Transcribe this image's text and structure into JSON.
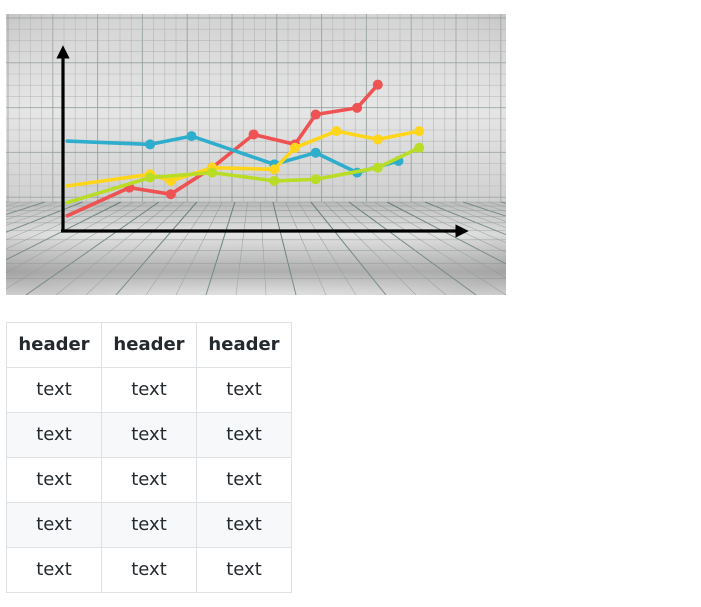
{
  "image": {
    "alt": "",
    "series": [
      {
        "name": "",
        "color": "#ee5252",
        "points": [
          [
            -1,
            -0.5
          ],
          [
            2,
            1.2
          ],
          [
            4,
            0.8
          ],
          [
            6,
            2.4
          ],
          [
            8,
            4.4
          ],
          [
            10,
            3.8
          ],
          [
            11,
            5.6
          ],
          [
            13,
            6
          ],
          [
            14,
            7.4
          ]
        ]
      },
      {
        "name": "",
        "color": "#2eaecc",
        "points": [
          [
            -1,
            4
          ],
          [
            3,
            3.8
          ],
          [
            5,
            4.3
          ],
          [
            9,
            2.6
          ],
          [
            11,
            3.3
          ],
          [
            13,
            2.1
          ],
          [
            15,
            2.8
          ]
        ]
      },
      {
        "name": "",
        "color": "#ffd51c",
        "points": [
          [
            -1,
            1.3
          ],
          [
            3,
            2
          ],
          [
            4,
            1.6
          ],
          [
            6,
            2.4
          ],
          [
            9,
            2.3
          ],
          [
            10,
            3.6
          ],
          [
            12,
            4.6
          ],
          [
            14,
            4.1
          ],
          [
            16,
            4.6
          ]
        ]
      },
      {
        "name": "",
        "color": "#b9dd26",
        "points": [
          [
            -1,
            0.3
          ],
          [
            3,
            1.8
          ],
          [
            6,
            2.1
          ],
          [
            9,
            1.6
          ],
          [
            11,
            1.7
          ],
          [
            14,
            2.4
          ],
          [
            16,
            3.6
          ]
        ]
      }
    ]
  },
  "table": {
    "headers": [
      "header",
      "header",
      "header"
    ],
    "rows": [
      [
        "text",
        "text",
        "text"
      ],
      [
        "text",
        "text",
        "text"
      ],
      [
        "text",
        "text",
        "text"
      ],
      [
        "text",
        "text",
        "text"
      ],
      [
        "text",
        "text",
        "text"
      ]
    ]
  }
}
